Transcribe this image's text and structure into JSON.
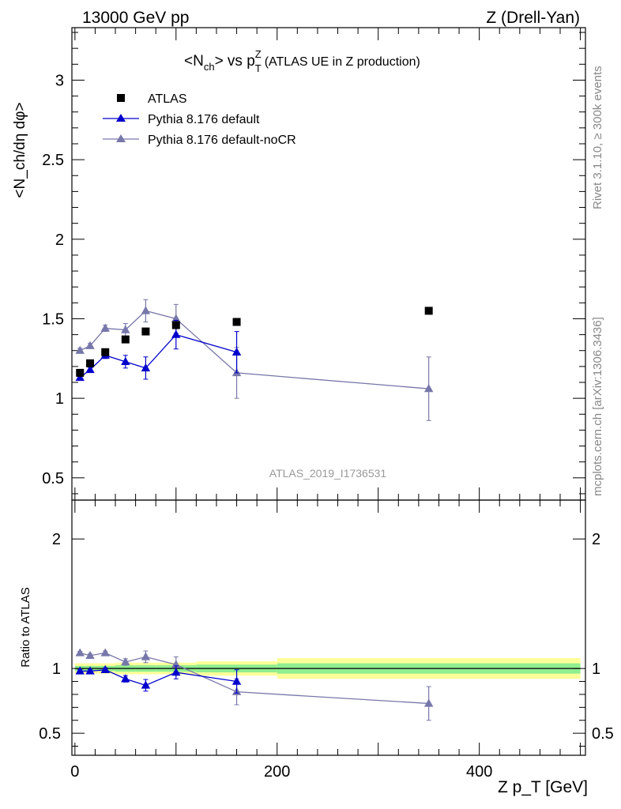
{
  "header": {
    "energy": "13000 GeV pp",
    "process": "Z (Drell-Yan)"
  },
  "side_labels": {
    "rivet": "Rivet 3.1.10, ≥ 300k events",
    "mcplots": "mcplots.cern.ch [arXiv:1306.3436]"
  },
  "title": {
    "obs": "<N",
    "obs_sub": "ch",
    "obs_vs": "> vs p",
    "obs_sub2": "T",
    "obs_sup2": "Z",
    "note": "(ATLAS UE in Z production)"
  },
  "watermark": "ATLAS_2019_I1736531",
  "ylabel_main": "<N_ch/dη dφ>",
  "ylabel_ratio": "Ratio to ATLAS",
  "xlabel": "Z p_T [GeV]",
  "colors": {
    "data": "#000000",
    "pythia_default": "#0000cc",
    "pythia_nocr": "#7777aa",
    "band_inner": "#90ee90",
    "band_outer": "#ffff99"
  },
  "chart_data": [
    {
      "type": "line",
      "panel": "main",
      "xlim": [
        -3,
        505
      ],
      "ylim": [
        0.36,
        3.33
      ],
      "yticks": [
        0.5,
        1,
        1.5,
        2,
        2.5,
        3
      ],
      "ytick_labels": [
        "0.5",
        "1",
        "1.5",
        "2",
        "2.5",
        "3"
      ],
      "series": [
        {
          "name": "ATLAS",
          "marker": "square",
          "x": [
            5,
            15,
            30,
            50,
            70,
            100,
            160,
            350
          ],
          "y": [
            1.16,
            1.22,
            1.29,
            1.37,
            1.42,
            1.46,
            1.48,
            1.55
          ]
        },
        {
          "name": "Pythia 8.176 default",
          "marker": "triangle",
          "x": [
            5,
            15,
            30,
            50,
            70,
            100,
            160
          ],
          "y": [
            1.13,
            1.18,
            1.27,
            1.23,
            1.19,
            1.4,
            1.29
          ],
          "err": [
            0.015,
            0.015,
            0.02,
            0.04,
            0.07,
            0.09,
            0.13
          ]
        },
        {
          "name": "Pythia 8.176 default-noCR",
          "marker": "triangle",
          "x": [
            5,
            15,
            30,
            50,
            70,
            100,
            160,
            350
          ],
          "y": [
            1.3,
            1.33,
            1.44,
            1.43,
            1.55,
            1.5,
            1.16,
            1.06
          ],
          "err": [
            0.015,
            0.015,
            0.02,
            0.04,
            0.07,
            0.09,
            0.16,
            0.2
          ]
        }
      ]
    },
    {
      "type": "line",
      "panel": "ratio",
      "xlim": [
        -3,
        505
      ],
      "ylim": [
        0.33,
        2.3
      ],
      "yticks": [
        0.5,
        1,
        2
      ],
      "ytick_labels": [
        "0.5",
        "1",
        "2"
      ],
      "xticks": [
        0,
        200,
        400
      ],
      "xtick_labels": [
        "0",
        "200",
        "400"
      ],
      "band": {
        "edges": [
          0,
          10,
          20,
          40,
          60,
          80,
          120,
          200,
          500
        ],
        "inner": [
          0.02,
          0.02,
          0.02,
          0.025,
          0.025,
          0.025,
          0.03,
          0.04
        ],
        "outer": [
          0.04,
          0.04,
          0.04,
          0.045,
          0.045,
          0.045,
          0.055,
          0.08
        ]
      },
      "series": [
        {
          "name": "Pythia 8.176 default",
          "x": [
            5,
            15,
            30,
            50,
            70,
            100,
            160
          ],
          "y": [
            0.98,
            0.98,
            0.99,
            0.92,
            0.87,
            0.97,
            0.9
          ],
          "err": [
            0.012,
            0.012,
            0.015,
            0.025,
            0.045,
            0.05,
            0.09
          ]
        },
        {
          "name": "Pythia 8.176 default-noCR",
          "x": [
            5,
            15,
            30,
            50,
            70,
            100,
            160,
            350
          ],
          "y": [
            1.12,
            1.1,
            1.12,
            1.05,
            1.09,
            1.03,
            0.82,
            0.73
          ],
          "err": [
            0.012,
            0.012,
            0.015,
            0.025,
            0.045,
            0.06,
            0.1,
            0.13
          ]
        }
      ]
    }
  ]
}
